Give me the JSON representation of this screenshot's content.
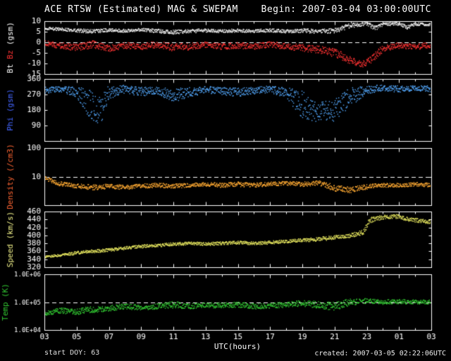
{
  "header": {
    "title": "ACE RTSW (Estimated) MAG & SWEPAM",
    "begin": "Begin: 2007-03-04 03:00:00UTC"
  },
  "footer": {
    "start_doy": "start DOY: 63",
    "created": "created: 2007-03-05 02:22:06UTC"
  },
  "chart_data": {
    "type": "scatter",
    "title": "ACE RTSW (Estimated) MAG & SWEPAM",
    "x_label": "UTC(hours)",
    "x_range_hours": [
      3,
      27
    ],
    "x_major_step_hours": 2,
    "x_tick_labels": [
      "03",
      "05",
      "07",
      "09",
      "11",
      "13",
      "15",
      "17",
      "19",
      "21",
      "23",
      "01",
      "03"
    ],
    "background_color": "#000000",
    "frame_color": "#ffffff",
    "panels": [
      {
        "name": "mag-bt-bz",
        "scale": "linear",
        "ylim": [
          -15,
          10
        ],
        "yticks": [
          [
            10,
            "10"
          ],
          [
            5,
            "5"
          ],
          [
            0,
            "0"
          ],
          [
            -5,
            "-5"
          ],
          [
            -10,
            "-10"
          ],
          [
            -15,
            "-15"
          ]
        ],
        "dashed": [
          0
        ],
        "axis_title": [
          {
            "text": "Bt ",
            "color": "#ffffff"
          },
          {
            "text": "Bz",
            "color": "#ff3333"
          },
          {
            "text": " (gsm)",
            "color": "#ffffff"
          }
        ],
        "series": [
          {
            "name": "Bt",
            "color": "#f2f2f2",
            "keyframes": [
              [
                3,
                6.5,
                0.7
              ],
              [
                4,
                6.2,
                0.7
              ],
              [
                5,
                5.6,
                0.8
              ],
              [
                6,
                5.2,
                1.0
              ],
              [
                7,
                5.8,
                0.8
              ],
              [
                8,
                5.5,
                0.8
              ],
              [
                9,
                6.0,
                0.7
              ],
              [
                10,
                5.4,
                0.9
              ],
              [
                11,
                4.8,
                1.0
              ],
              [
                12,
                5.2,
                0.9
              ],
              [
                13,
                5.6,
                0.8
              ],
              [
                14,
                5.2,
                0.8
              ],
              [
                15,
                5.6,
                0.8
              ],
              [
                16,
                5.3,
                0.8
              ],
              [
                17,
                5.6,
                0.8
              ],
              [
                18,
                5.2,
                0.8
              ],
              [
                19,
                5.6,
                1.0
              ],
              [
                20,
                5.0,
                1.0
              ],
              [
                21,
                5.5,
                1.2
              ],
              [
                22,
                8.0,
                1.2
              ],
              [
                23,
                9.0,
                0.9
              ],
              [
                23.5,
                6.5,
                1.2
              ],
              [
                24,
                8.5,
                0.8
              ],
              [
                25,
                8.8,
                0.8
              ],
              [
                25.5,
                7.0,
                1.0
              ],
              [
                26,
                8.6,
                0.7
              ],
              [
                27,
                8.4,
                0.7
              ]
            ]
          },
          {
            "name": "Bz",
            "color": "#ff3333",
            "keyframes": [
              [
                3,
                -0.5,
                1.2
              ],
              [
                4,
                -1.5,
                1.5
              ],
              [
                5,
                -2.5,
                1.6
              ],
              [
                6,
                -1.0,
                1.8
              ],
              [
                7,
                -3.0,
                1.6
              ],
              [
                8,
                -1.5,
                1.4
              ],
              [
                9,
                -2.0,
                1.5
              ],
              [
                10,
                -1.0,
                1.6
              ],
              [
                11,
                -2.5,
                1.7
              ],
              [
                12,
                -2.0,
                1.6
              ],
              [
                13,
                -1.0,
                1.4
              ],
              [
                14,
                -2.0,
                1.4
              ],
              [
                15,
                -1.5,
                1.4
              ],
              [
                16,
                -2.0,
                1.4
              ],
              [
                17,
                -1.0,
                1.4
              ],
              [
                18,
                -2.0,
                1.5
              ],
              [
                19,
                -2.5,
                1.7
              ],
              [
                20,
                -3.5,
                1.8
              ],
              [
                21,
                -5.0,
                2.0
              ],
              [
                22,
                -8.5,
                1.8
              ],
              [
                22.7,
                -10.5,
                1.4
              ],
              [
                23.3,
                -8.0,
                1.8
              ],
              [
                24,
                -3.0,
                1.8
              ],
              [
                25,
                -1.5,
                1.4
              ],
              [
                26,
                -2.0,
                1.4
              ],
              [
                27,
                -1.5,
                1.4
              ]
            ]
          }
        ]
      },
      {
        "name": "phi",
        "scale": "linear",
        "ylim": [
          0,
          360
        ],
        "yticks": [
          [
            360,
            "360"
          ],
          [
            270,
            "270"
          ],
          [
            180,
            "180"
          ],
          [
            90,
            "90"
          ]
        ],
        "dashed": [],
        "axis_title": [
          {
            "text": "Phi (gsm)",
            "color": "#4466ff"
          }
        ],
        "series": [
          {
            "name": "Phi",
            "color": "#55aaff",
            "keyframes": [
              [
                3,
                295,
                18
              ],
              [
                4,
                300,
                15
              ],
              [
                5,
                285,
                30
              ],
              [
                5.8,
                220,
                90
              ],
              [
                6.5,
                170,
                80
              ],
              [
                7,
                280,
                45
              ],
              [
                8,
                300,
                22
              ],
              [
                9,
                285,
                28
              ],
              [
                10,
                292,
                20
              ],
              [
                11,
                265,
                40
              ],
              [
                12,
                282,
                28
              ],
              [
                13,
                298,
                20
              ],
              [
                14,
                290,
                22
              ],
              [
                15,
                282,
                26
              ],
              [
                16,
                292,
                20
              ],
              [
                17,
                300,
                20
              ],
              [
                18,
                282,
                30
              ],
              [
                19,
                210,
                80
              ],
              [
                20,
                165,
                55
              ],
              [
                21,
                180,
                65
              ],
              [
                22,
                250,
                60
              ],
              [
                23,
                298,
                25
              ],
              [
                24,
                308,
                16
              ],
              [
                25,
                300,
                20
              ],
              [
                26,
                308,
                15
              ],
              [
                27,
                302,
                18
              ]
            ]
          }
        ]
      },
      {
        "name": "density",
        "scale": "log",
        "ylim": [
          1,
          100
        ],
        "yticks": [
          [
            100,
            "100"
          ],
          [
            10,
            "10"
          ]
        ],
        "dashed": [
          10
        ],
        "axis_title": [
          {
            "text": "Density (/cm3)",
            "color": "#ff6633"
          }
        ],
        "series": [
          {
            "name": "Density",
            "color": "#ffaa33",
            "keyframes": [
              [
                3,
                9,
                0.06
              ],
              [
                3.5,
                7,
                0.08
              ],
              [
                4,
                5.5,
                0.08
              ],
              [
                5,
                4.8,
                0.08
              ],
              [
                6,
                4.2,
                0.1
              ],
              [
                7,
                4.6,
                0.08
              ],
              [
                8,
                4.2,
                0.08
              ],
              [
                9,
                4.6,
                0.08
              ],
              [
                10,
                5.0,
                0.08
              ],
              [
                11,
                4.6,
                0.08
              ],
              [
                12,
                5.0,
                0.07
              ],
              [
                13,
                5.4,
                0.07
              ],
              [
                14,
                5.0,
                0.08
              ],
              [
                15,
                5.4,
                0.08
              ],
              [
                16,
                5.0,
                0.08
              ],
              [
                17,
                5.5,
                0.07
              ],
              [
                18,
                5.8,
                0.07
              ],
              [
                19,
                5.4,
                0.08
              ],
              [
                20,
                6.0,
                0.08
              ],
              [
                21,
                4.0,
                0.12
              ],
              [
                22,
                3.4,
                0.1
              ],
              [
                23,
                4.4,
                0.09
              ],
              [
                24,
                5.0,
                0.07
              ],
              [
                25,
                5.0,
                0.07
              ],
              [
                26,
                5.4,
                0.07
              ],
              [
                27,
                5.0,
                0.07
              ]
            ]
          }
        ]
      },
      {
        "name": "speed",
        "scale": "linear",
        "ylim": [
          320,
          460
        ],
        "yticks": [
          [
            460,
            "460"
          ],
          [
            440,
            "440"
          ],
          [
            420,
            "420"
          ],
          [
            400,
            "400"
          ],
          [
            380,
            "380"
          ],
          [
            360,
            "360"
          ],
          [
            340,
            "340"
          ],
          [
            320,
            "320"
          ]
        ],
        "dashed": [],
        "axis_title": [
          {
            "text": "Speed (km/s)",
            "color": "#eeee88"
          }
        ],
        "series": [
          {
            "name": "Speed",
            "color": "#e8e860",
            "keyframes": [
              [
                3,
                346,
                3
              ],
              [
                4,
                350,
                3
              ],
              [
                5,
                356,
                4
              ],
              [
                6,
                360,
                4
              ],
              [
                7,
                363,
                4
              ],
              [
                8,
                368,
                4
              ],
              [
                9,
                372,
                4
              ],
              [
                10,
                375,
                4
              ],
              [
                11,
                378,
                4
              ],
              [
                12,
                380,
                4
              ],
              [
                13,
                378,
                4
              ],
              [
                14,
                380,
                4
              ],
              [
                15,
                382,
                4
              ],
              [
                16,
                380,
                4
              ],
              [
                17,
                382,
                4
              ],
              [
                18,
                385,
                4
              ],
              [
                19,
                388,
                4
              ],
              [
                20,
                390,
                5
              ],
              [
                21,
                395,
                5
              ],
              [
                22,
                400,
                5
              ],
              [
                22.8,
                408,
                7
              ],
              [
                23.2,
                438,
                7
              ],
              [
                24,
                446,
                5
              ],
              [
                25,
                448,
                5
              ],
              [
                25.5,
                441,
                5
              ],
              [
                26,
                438,
                5
              ],
              [
                27,
                433,
                5
              ]
            ]
          }
        ]
      },
      {
        "name": "temp",
        "scale": "log",
        "ylim": [
          10000,
          1000000
        ],
        "yticks": [
          [
            1000000,
            "1.0E+06"
          ],
          [
            100000,
            "1.0E+05"
          ],
          [
            10000,
            "1.0E+04"
          ]
        ],
        "tick_font": 9,
        "title_x": 8,
        "dashed": [
          100000
        ],
        "axis_title": [
          {
            "text": "Temp (K)",
            "color": "#33cc33"
          }
        ],
        "series": [
          {
            "name": "Temp",
            "color": "#33cc33",
            "keyframes": [
              [
                3,
                38000,
                0.08
              ],
              [
                4,
                50000,
                0.1
              ],
              [
                5,
                45000,
                0.1
              ],
              [
                6,
                55000,
                0.12
              ],
              [
                7,
                60000,
                0.1
              ],
              [
                8,
                70000,
                0.1
              ],
              [
                9,
                65000,
                0.1
              ],
              [
                10,
                70000,
                0.1
              ],
              [
                11,
                80000,
                0.12
              ],
              [
                12,
                70000,
                0.1
              ],
              [
                13,
                80000,
                0.09
              ],
              [
                14,
                75000,
                0.1
              ],
              [
                15,
                80000,
                0.1
              ],
              [
                16,
                70000,
                0.1
              ],
              [
                17,
                75000,
                0.09
              ],
              [
                18,
                80000,
                0.1
              ],
              [
                19,
                90000,
                0.12
              ],
              [
                20,
                80000,
                0.12
              ],
              [
                21,
                70000,
                0.15
              ],
              [
                22,
                100000,
                0.12
              ],
              [
                23,
                110000,
                0.09
              ],
              [
                24,
                100000,
                0.08
              ],
              [
                25,
                105000,
                0.08
              ],
              [
                26,
                100000,
                0.08
              ],
              [
                27,
                100000,
                0.08
              ]
            ]
          }
        ]
      }
    ]
  }
}
